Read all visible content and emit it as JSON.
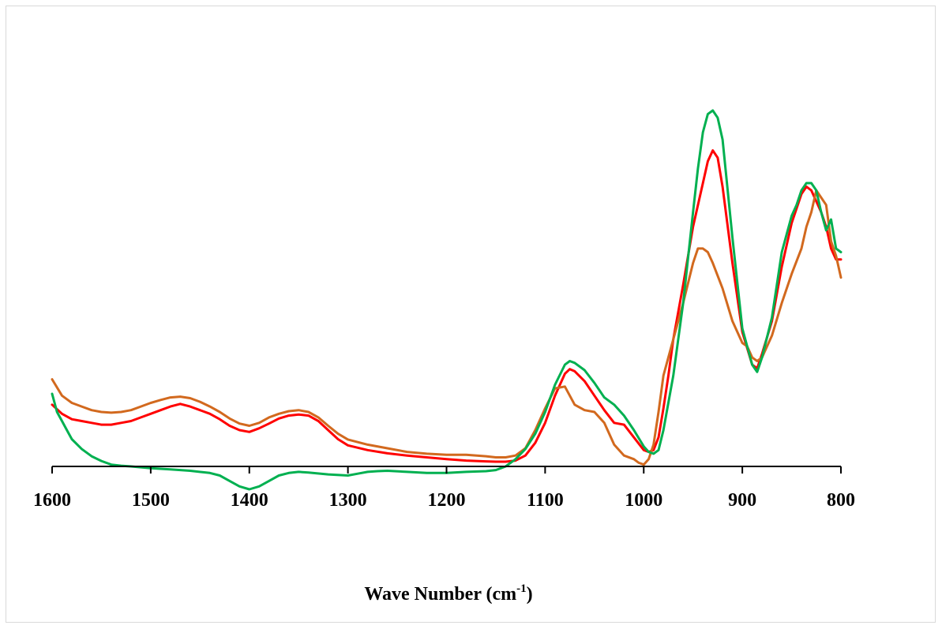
{
  "chart_data": {
    "type": "line",
    "title": "",
    "xlabel": "Wave Number (cm",
    "xlabel_superscript": "-1",
    "xlabel_suffix": ")",
    "ylabel": "",
    "x_reversed": true,
    "xlim": [
      1600,
      800
    ],
    "ylim": [
      -0.1,
      1.0
    ],
    "grid": false,
    "x_ticks": [
      "1600",
      "1500",
      "1400",
      "1300",
      "1200",
      "1100",
      "1000",
      "900",
      "800"
    ],
    "series": [
      {
        "color": "#ff0000",
        "x": [
          1600,
          1590,
          1580,
          1570,
          1560,
          1550,
          1540,
          1530,
          1520,
          1510,
          1500,
          1490,
          1480,
          1470,
          1460,
          1450,
          1440,
          1430,
          1420,
          1410,
          1400,
          1390,
          1380,
          1370,
          1360,
          1350,
          1340,
          1330,
          1320,
          1310,
          1300,
          1280,
          1260,
          1240,
          1220,
          1200,
          1180,
          1160,
          1150,
          1140,
          1130,
          1120,
          1110,
          1100,
          1090,
          1080,
          1075,
          1070,
          1060,
          1050,
          1040,
          1030,
          1020,
          1010,
          1000,
          995,
          990,
          985,
          980,
          975,
          970,
          960,
          950,
          940,
          935,
          930,
          925,
          920,
          910,
          900,
          890,
          885,
          880,
          870,
          860,
          850,
          845,
          840,
          835,
          830,
          825,
          820,
          815,
          810,
          805,
          800
        ],
        "y": [
          0.17,
          0.145,
          0.13,
          0.125,
          0.12,
          0.115,
          0.115,
          0.12,
          0.125,
          0.135,
          0.145,
          0.155,
          0.165,
          0.172,
          0.165,
          0.155,
          0.145,
          0.13,
          0.112,
          0.1,
          0.095,
          0.105,
          0.118,
          0.132,
          0.14,
          0.143,
          0.14,
          0.125,
          0.1,
          0.075,
          0.058,
          0.045,
          0.036,
          0.03,
          0.025,
          0.02,
          0.016,
          0.014,
          0.013,
          0.013,
          0.016,
          0.03,
          0.065,
          0.12,
          0.195,
          0.255,
          0.268,
          0.262,
          0.235,
          0.195,
          0.155,
          0.12,
          0.115,
          0.08,
          0.045,
          0.04,
          0.045,
          0.08,
          0.16,
          0.25,
          0.35,
          0.5,
          0.66,
          0.78,
          0.84,
          0.87,
          0.85,
          0.77,
          0.56,
          0.37,
          0.28,
          0.27,
          0.31,
          0.4,
          0.55,
          0.67,
          0.71,
          0.75,
          0.77,
          0.76,
          0.73,
          0.7,
          0.66,
          0.6,
          0.57,
          0.57
        ]
      },
      {
        "color": "#d2691e",
        "x": [
          1600,
          1590,
          1580,
          1570,
          1560,
          1550,
          1540,
          1530,
          1520,
          1510,
          1500,
          1490,
          1480,
          1470,
          1460,
          1450,
          1440,
          1430,
          1420,
          1410,
          1400,
          1390,
          1380,
          1370,
          1360,
          1350,
          1340,
          1330,
          1320,
          1310,
          1300,
          1280,
          1260,
          1240,
          1220,
          1200,
          1180,
          1160,
          1150,
          1140,
          1130,
          1120,
          1110,
          1100,
          1090,
          1080,
          1075,
          1070,
          1060,
          1050,
          1040,
          1030,
          1020,
          1010,
          1005,
          1000,
          995,
          990,
          985,
          980,
          970,
          960,
          950,
          945,
          940,
          935,
          930,
          920,
          910,
          900,
          895,
          890,
          885,
          880,
          870,
          860,
          850,
          840,
          835,
          830,
          825,
          820,
          815,
          810,
          805,
          800
        ],
        "y": [
          0.24,
          0.195,
          0.175,
          0.165,
          0.155,
          0.15,
          0.148,
          0.15,
          0.155,
          0.165,
          0.175,
          0.183,
          0.19,
          0.192,
          0.188,
          0.178,
          0.165,
          0.15,
          0.132,
          0.118,
          0.112,
          0.12,
          0.135,
          0.145,
          0.152,
          0.155,
          0.15,
          0.135,
          0.112,
          0.09,
          0.074,
          0.06,
          0.05,
          0.04,
          0.035,
          0.032,
          0.032,
          0.028,
          0.025,
          0.025,
          0.03,
          0.05,
          0.1,
          0.16,
          0.215,
          0.22,
          0.195,
          0.17,
          0.155,
          0.15,
          0.12,
          0.06,
          0.03,
          0.02,
          0.01,
          0.005,
          0.02,
          0.06,
          0.15,
          0.25,
          0.35,
          0.45,
          0.56,
          0.6,
          0.6,
          0.59,
          0.56,
          0.49,
          0.4,
          0.34,
          0.33,
          0.3,
          0.29,
          0.3,
          0.36,
          0.45,
          0.53,
          0.6,
          0.66,
          0.7,
          0.76,
          0.74,
          0.72,
          0.62,
          0.58,
          0.52
        ]
      },
      {
        "color": "#00b050",
        "x": [
          1600,
          1595,
          1590,
          1585,
          1580,
          1570,
          1560,
          1550,
          1540,
          1530,
          1520,
          1500,
          1480,
          1460,
          1440,
          1430,
          1420,
          1410,
          1400,
          1390,
          1380,
          1370,
          1360,
          1350,
          1340,
          1320,
          1300,
          1290,
          1280,
          1270,
          1260,
          1240,
          1220,
          1200,
          1180,
          1160,
          1150,
          1140,
          1130,
          1120,
          1110,
          1100,
          1090,
          1080,
          1075,
          1070,
          1060,
          1050,
          1040,
          1030,
          1020,
          1010,
          1000,
          995,
          990,
          985,
          980,
          970,
          960,
          950,
          945,
          940,
          935,
          930,
          925,
          920,
          910,
          900,
          890,
          885,
          880,
          870,
          860,
          850,
          845,
          840,
          835,
          830,
          825,
          820,
          815,
          810,
          805,
          800
        ],
        "y": [
          0.2,
          0.15,
          0.125,
          0.1,
          0.075,
          0.048,
          0.028,
          0.015,
          0.005,
          0.002,
          0.0,
          -0.005,
          -0.008,
          -0.012,
          -0.018,
          -0.025,
          -0.04,
          -0.055,
          -0.063,
          -0.055,
          -0.04,
          -0.025,
          -0.018,
          -0.015,
          -0.017,
          -0.022,
          -0.025,
          -0.02,
          -0.015,
          -0.013,
          -0.012,
          -0.015,
          -0.018,
          -0.018,
          -0.015,
          -0.013,
          -0.01,
          0.0,
          0.02,
          0.048,
          0.09,
          0.15,
          0.225,
          0.28,
          0.29,
          0.285,
          0.265,
          0.23,
          0.19,
          0.17,
          0.14,
          0.1,
          0.055,
          0.04,
          0.035,
          0.045,
          0.1,
          0.25,
          0.45,
          0.7,
          0.82,
          0.92,
          0.97,
          0.98,
          0.96,
          0.9,
          0.63,
          0.38,
          0.28,
          0.26,
          0.3,
          0.41,
          0.59,
          0.69,
          0.72,
          0.76,
          0.78,
          0.78,
          0.76,
          0.7,
          0.65,
          0.68,
          0.6,
          0.59
        ]
      }
    ]
  }
}
